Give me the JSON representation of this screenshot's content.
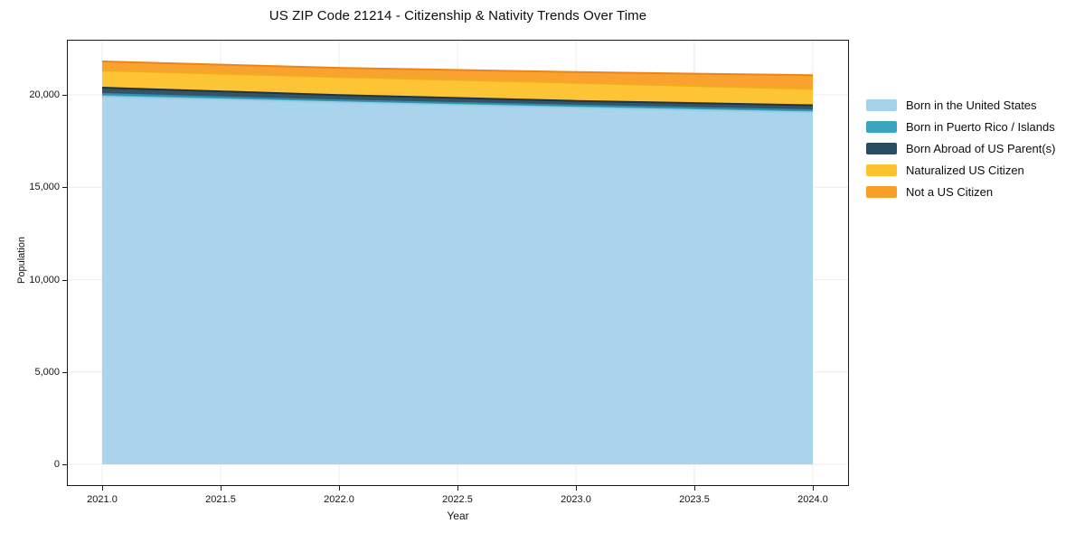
{
  "title": "US ZIP Code 21214 - Citizenship & Nativity Trends Over Time",
  "chart_data": {
    "type": "area",
    "stacked": true,
    "title": "US ZIP Code 21214 - Citizenship & Nativity Trends Over Time",
    "xlabel": "Year",
    "ylabel": "Population",
    "x": [
      2021,
      2022,
      2023,
      2024
    ],
    "series": [
      {
        "name": "Born in the United States",
        "color": "#a5d2ea",
        "line_color": "#9acbe5",
        "values": [
          19900,
          19600,
          19300,
          19050
        ]
      },
      {
        "name": "Born in Puerto Rico / Islands",
        "color": "#3aa5c1",
        "line_color": "#2d92ad",
        "values": [
          150,
          100,
          120,
          120
        ]
      },
      {
        "name": "Born Abroad of US Parent(s)",
        "color": "#2b4c61",
        "line_color": "#1c3445",
        "values": [
          340,
          290,
          250,
          270
        ]
      },
      {
        "name": "Naturalized US Citizen",
        "color": "#fdc32e",
        "line_color": "#f2ad1a",
        "values": [
          930,
          980,
          980,
          880
        ]
      },
      {
        "name": "Not a US Citizen",
        "color": "#f99e28",
        "line_color": "#ee8414",
        "values": [
          490,
          490,
          580,
          740
        ]
      }
    ],
    "xticks": [
      {
        "v": 2021.0,
        "label": "2021.0"
      },
      {
        "v": 2021.5,
        "label": "2021.5"
      },
      {
        "v": 2022.0,
        "label": "2022.0"
      },
      {
        "v": 2022.5,
        "label": "2022.5"
      },
      {
        "v": 2023.0,
        "label": "2023.0"
      },
      {
        "v": 2023.5,
        "label": "2023.5"
      },
      {
        "v": 2024.0,
        "label": "2024.0"
      }
    ],
    "yticks": [
      {
        "v": 0,
        "label": "0"
      },
      {
        "v": 5000,
        "label": "5,000"
      },
      {
        "v": 10000,
        "label": "10,000"
      },
      {
        "v": 15000,
        "label": "15,000"
      },
      {
        "v": 20000,
        "label": "20,000"
      }
    ],
    "ylim": [
      -1170,
      22980
    ],
    "xlim": [
      2020.85,
      2024.15
    ],
    "grid": true,
    "grid_color": "#ececec",
    "legend_position": "right"
  }
}
